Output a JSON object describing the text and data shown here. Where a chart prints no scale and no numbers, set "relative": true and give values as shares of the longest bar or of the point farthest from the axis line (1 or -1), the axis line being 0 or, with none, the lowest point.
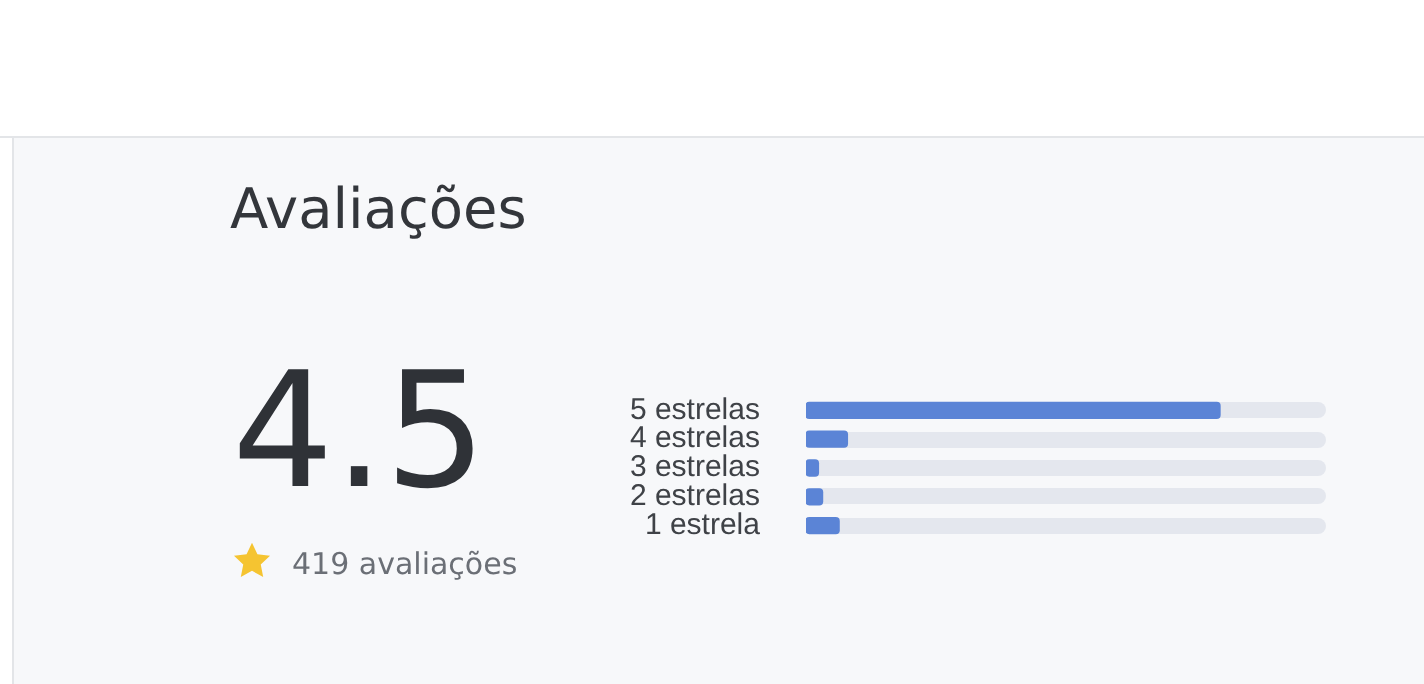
{
  "chart_data": {
    "type": "bar",
    "orientation": "horizontal",
    "relative": true,
    "title": "Avaliações",
    "categories": [
      "5 estrelas",
      "4 estrelas",
      "3 estrelas",
      "2 estrelas",
      "1 estrela"
    ],
    "values": [
      1,
      0.1,
      0.03,
      0.04,
      0.08
    ],
    "color": "#5b84d6",
    "annotations": [
      "4.5",
      "419 avaliações"
    ]
  }
}
